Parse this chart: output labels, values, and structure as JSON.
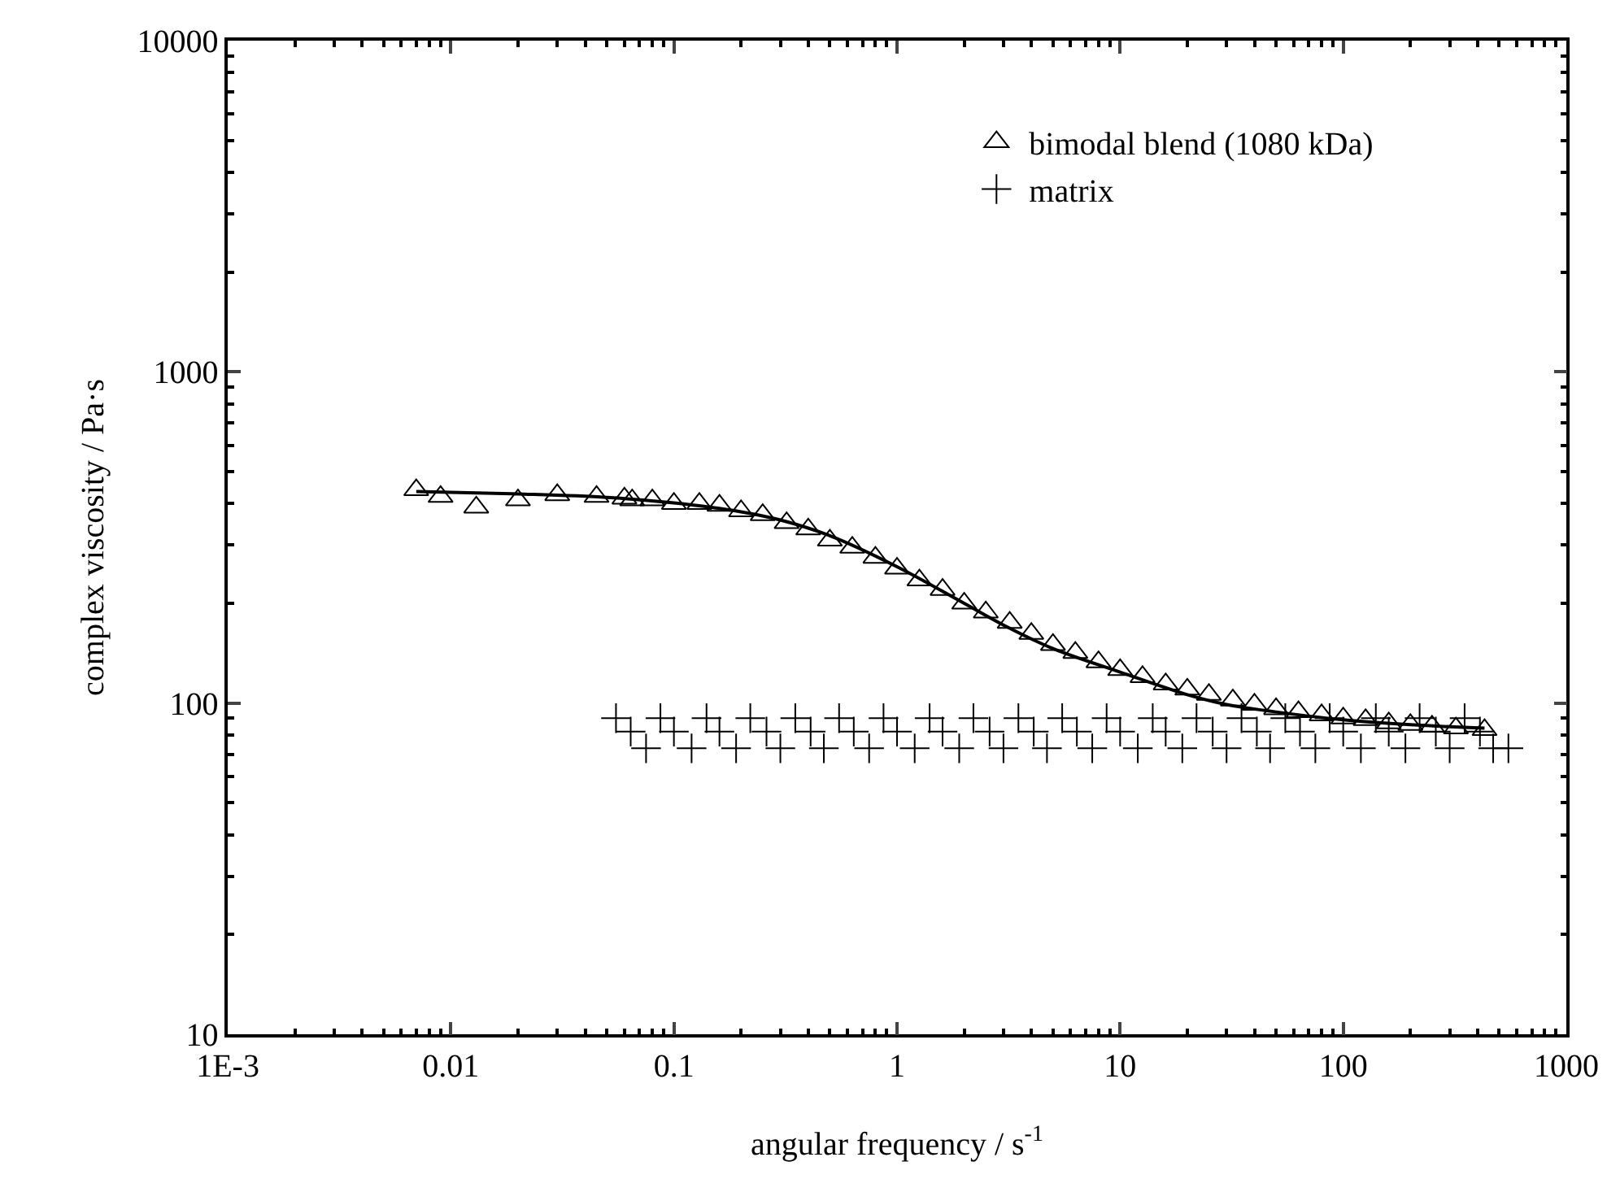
{
  "chart_data": {
    "type": "scatter",
    "xlabel": "angular frequency / s$^{-1}$",
    "ylabel": "complex viscosity / Pa·s",
    "log": "xy",
    "legend": "top right",
    "xlim": [
      0.001,
      1000
    ],
    "xticks": [
      {
        "value": 0.001,
        "label": "1E-3"
      },
      0.01,
      0.1,
      1,
      10,
      100,
      1000
    ],
    "ylim": [
      10,
      10000
    ],
    "yticks": [
      10,
      100,
      1000,
      10000
    ],
    "series": [
      {
        "name": "bimodal blend (1080 kDa)",
        "color": "#000000",
        "marker": "triangle",
        "x": [
          0.007,
          0.009,
          0.013,
          0.02,
          0.03,
          0.045,
          0.06,
          0.065,
          0.08,
          0.1,
          0.13,
          0.16,
          0.2,
          0.25,
          0.32,
          0.4,
          0.5,
          0.63,
          0.8,
          1.0,
          1.26,
          1.6,
          2,
          2.5,
          3.2,
          4,
          5,
          6.3,
          8,
          10,
          12.6,
          16,
          20,
          25,
          32,
          40,
          50,
          63,
          80,
          100,
          126,
          160,
          200,
          250,
          320,
          430
        ],
        "values": [
          440,
          420,
          390,
          410,
          425,
          420,
          415,
          410,
          410,
          400,
          400,
          395,
          380,
          370,
          350,
          335,
          310,
          295,
          275,
          255,
          235,
          220,
          200,
          188,
          175,
          162,
          150,
          142,
          133,
          126,
          120,
          114,
          110,
          106,
          102,
          99,
          96,
          94,
          92,
          90,
          89,
          87,
          86,
          85,
          84,
          83
        ]
      },
      {
        "name": "matrix",
        "color": "#000000",
        "marker": "cross",
        "x": [
          0.055,
          0.064,
          0.075,
          0.087,
          0.1,
          0.12,
          0.14,
          0.16,
          0.19,
          0.22,
          0.26,
          0.3,
          0.35,
          0.41,
          0.47,
          0.55,
          0.64,
          0.75,
          0.87,
          1.0,
          1.2,
          1.4,
          1.6,
          1.9,
          2.2,
          2.6,
          3.0,
          3.5,
          4.1,
          4.7,
          5.5,
          6.4,
          7.5,
          8.7,
          10,
          12,
          14,
          16,
          19,
          22,
          26,
          30,
          35,
          41,
          47,
          55,
          64,
          75,
          87,
          100,
          120,
          140,
          160,
          190,
          220,
          260,
          300,
          350,
          410,
          470,
          550
        ],
        "values": [
          90,
          82,
          73,
          90,
          82,
          73,
          90,
          82,
          73,
          90,
          82,
          73,
          90,
          82,
          73,
          90,
          82,
          73,
          90,
          82,
          73,
          90,
          82,
          73,
          90,
          82,
          73,
          90,
          82,
          73,
          90,
          82,
          73,
          90,
          82,
          73,
          90,
          82,
          73,
          90,
          82,
          73,
          90,
          82,
          73,
          90,
          82,
          73,
          90,
          82,
          73,
          90,
          82,
          73,
          90,
          82,
          73,
          90,
          82,
          73,
          73
        ]
      },
      {
        "type": "line",
        "color": "#000000",
        "marker": "none",
        "line_style": "solid",
        "x": [
          0.007,
          0.01,
          0.02,
          0.05,
          0.1,
          0.2,
          0.3,
          0.5,
          1,
          2,
          3,
          5,
          10,
          20,
          30,
          50,
          100,
          200,
          430
        ],
        "values": [
          435,
          433,
          428,
          418,
          402,
          378,
          357,
          320,
          258,
          200,
          172,
          146,
          124,
          106,
          99,
          94,
          89,
          86,
          84
        ]
      }
    ]
  }
}
